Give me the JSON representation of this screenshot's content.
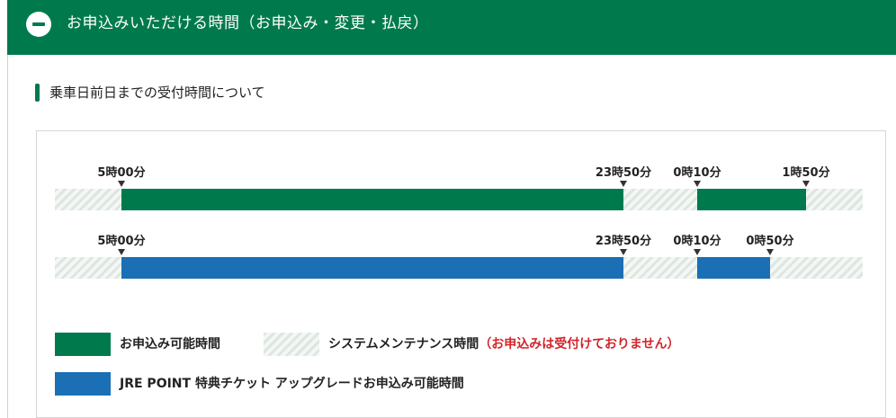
{
  "header": {
    "title": "お申込みいただける時間（お申込み・変更・払戻）",
    "toggle_icon": "minus-circle-icon"
  },
  "section": {
    "heading": "乗車日前日までの受付時間について"
  },
  "timelines": [
    {
      "name": "standard",
      "color": "#007a4d",
      "markers": [
        "5時00分",
        "23時50分",
        "0時10分",
        "1時50分"
      ]
    },
    {
      "name": "jre-point",
      "color": "#1a6fb5",
      "markers": [
        "5時00分",
        "23時50分",
        "0時10分",
        "0時50分"
      ]
    }
  ],
  "legend": {
    "available": "お申込み可能時間",
    "maintenance": "システムメンテナンス時間",
    "maintenance_note": "（お申込みは受付けておりません）",
    "jre_point": "JRE POINT 特典チケット アップグレードお申込み可能時間"
  },
  "colors": {
    "brand_green": "#007a4d",
    "jre_blue": "#1a6fb5",
    "note_red": "#d2242b"
  }
}
